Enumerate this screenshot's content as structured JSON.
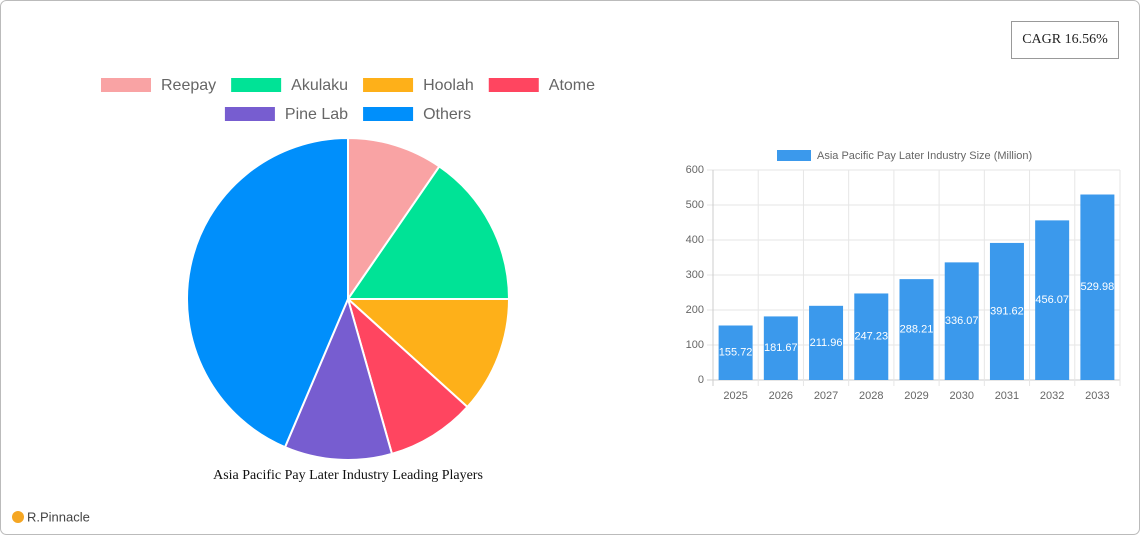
{
  "cagr": "CAGR 16.56%",
  "brand": "R.Pinnacle",
  "chart_data": [
    {
      "type": "pie",
      "title": "Asia Pacific Pay Later Industry Leading Players",
      "categories": [
        "Reepay",
        "Akulaku",
        "Hoolah",
        "Atome",
        "Pine Lab",
        "Others"
      ],
      "values": [
        9.6,
        15.4,
        11.7,
        8.9,
        10.8,
        43.6
      ],
      "colors": [
        "#f9a3a4",
        "#00e396",
        "#feb019",
        "#ff4560",
        "#775dd0",
        "#008ffb"
      ],
      "legend": "top"
    },
    {
      "type": "bar",
      "categories": [
        "2025",
        "2026",
        "2027",
        "2028",
        "2029",
        "2030",
        "2031",
        "2032",
        "2033"
      ],
      "series": [
        {
          "name": "Asia Pacific Pay Later Industry Size (Million)",
          "color": "#3b99ec",
          "values": [
            155.72,
            181.67,
            211.96,
            247.23,
            288.21,
            336.07,
            391.62,
            456.07,
            529.98
          ]
        }
      ],
      "ylim": [
        0,
        600
      ],
      "yticks": [
        0,
        100,
        200,
        300,
        400,
        500,
        600
      ],
      "grid": true,
      "legend": "top"
    }
  ]
}
